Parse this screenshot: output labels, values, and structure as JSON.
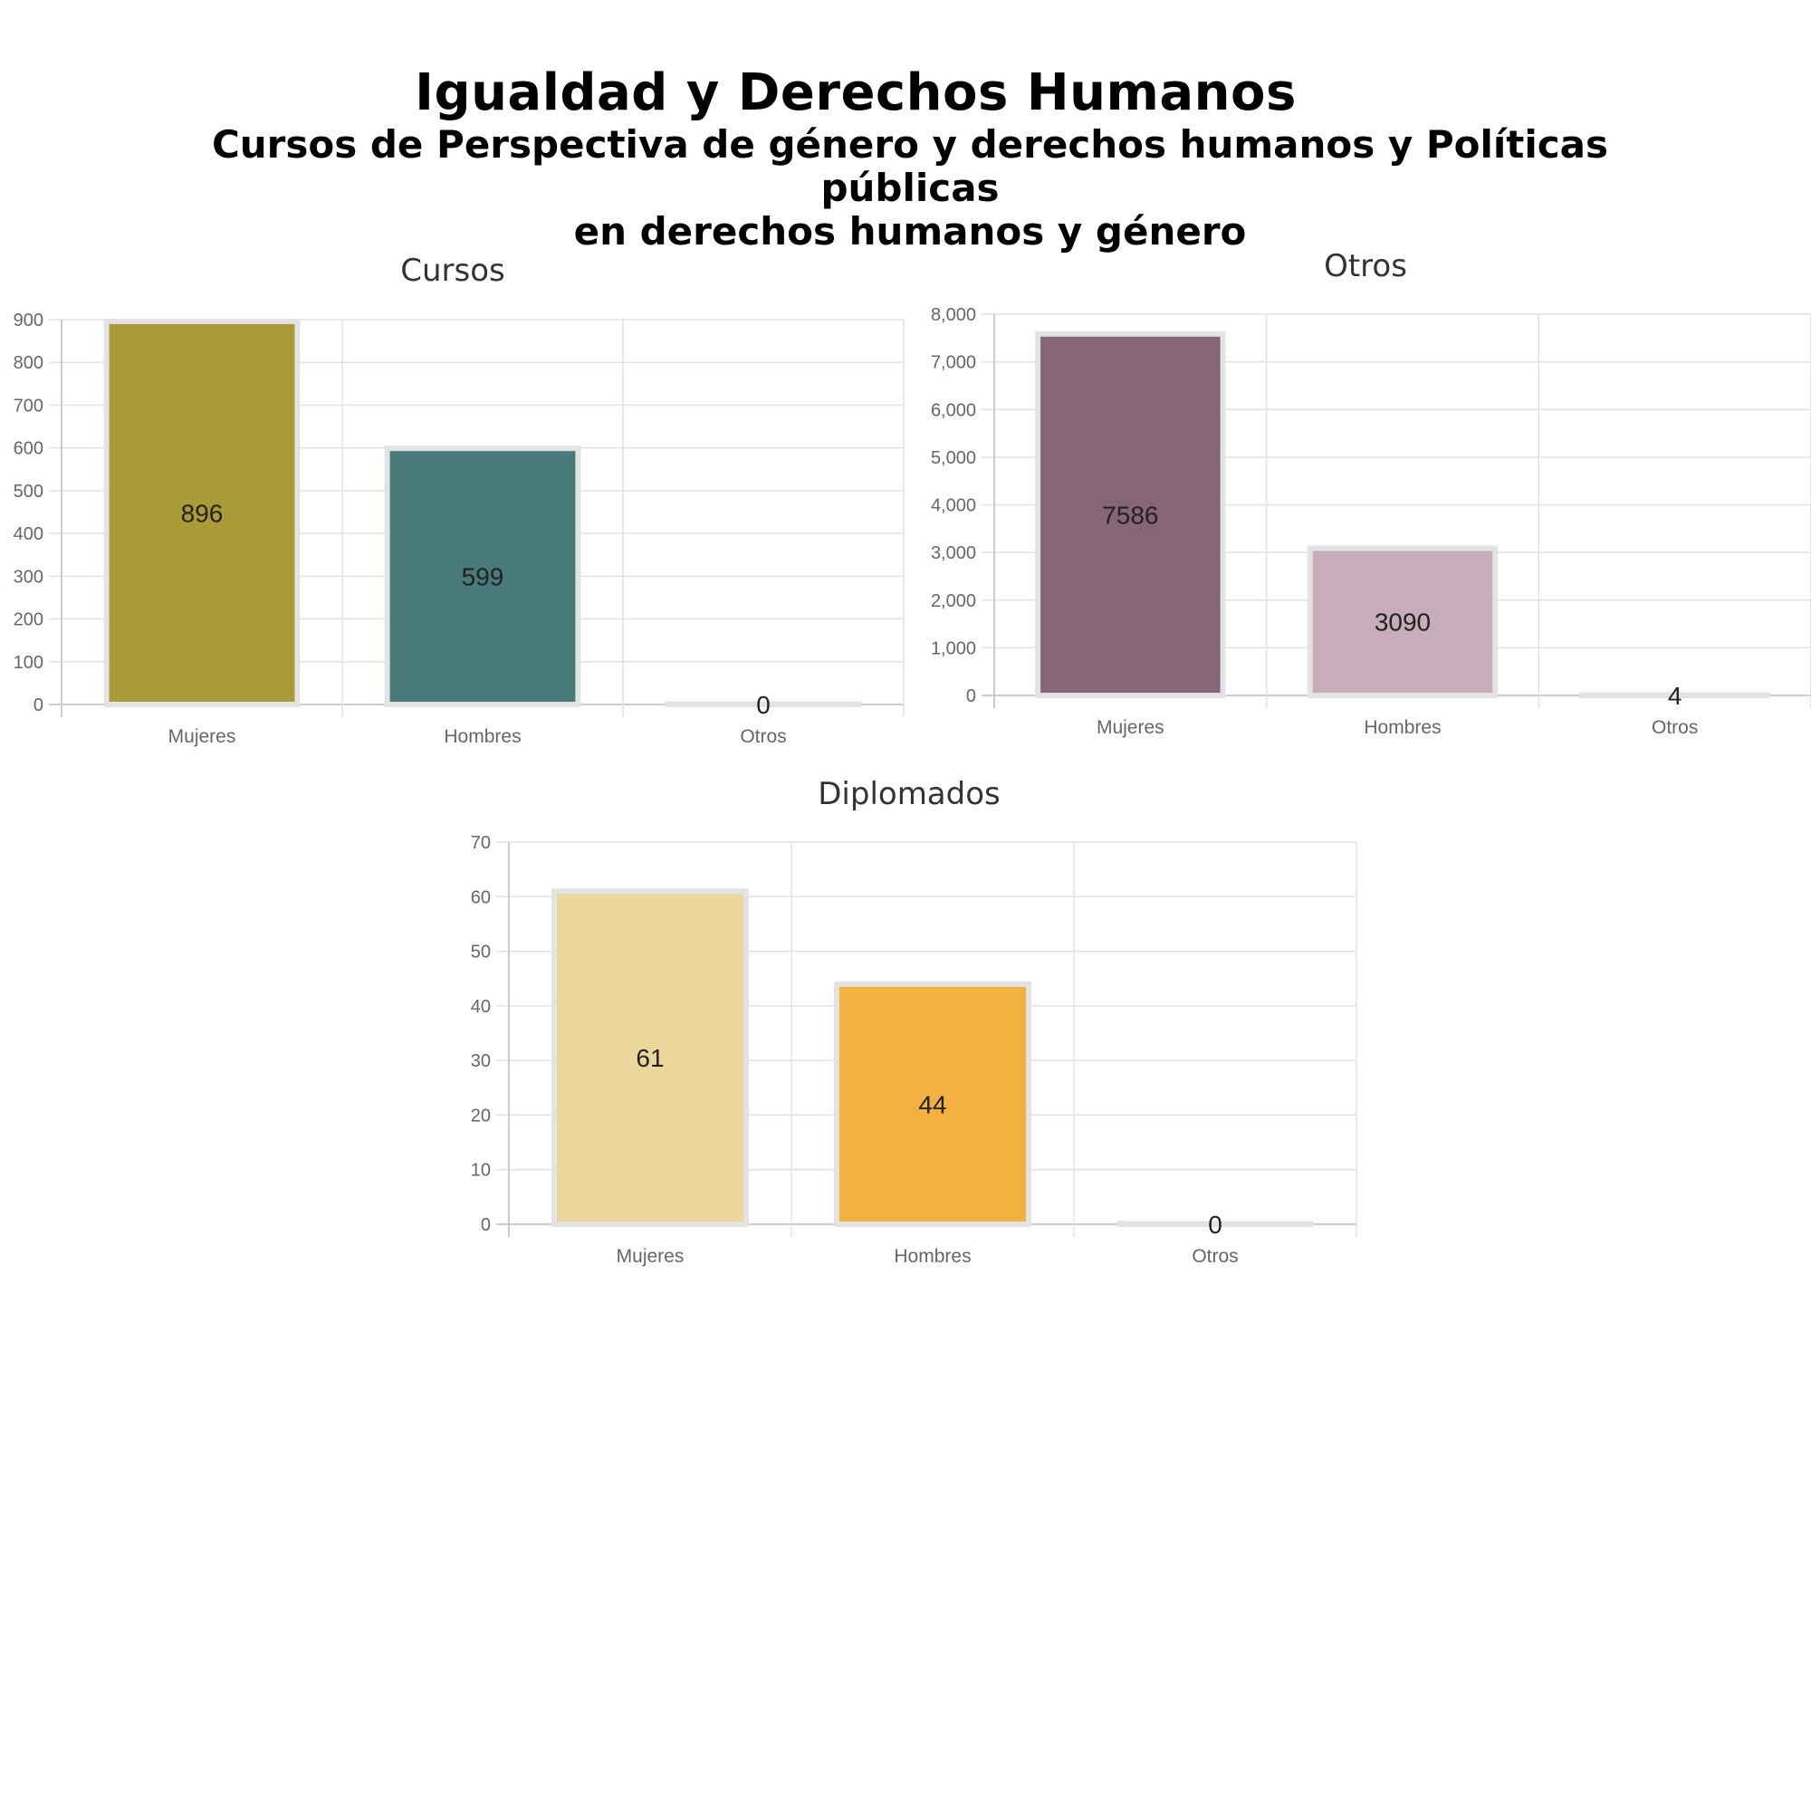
{
  "header": {
    "title": "Igualdad y Derechos Humanos",
    "subtitle_line1": "Cursos de Perspectiva de género y derechos humanos y Políticas públicas",
    "subtitle_line2": "en derechos humanos y género"
  },
  "chart_data": [
    {
      "type": "bar",
      "title": "Cursos",
      "categories": [
        "Mujeres",
        "Hombres",
        "Otros"
      ],
      "values": [
        896,
        599,
        0
      ],
      "data_labels": [
        "896",
        "599",
        "0"
      ],
      "colors": [
        "#a99c37",
        "#487a7b",
        "#a99c37"
      ],
      "ylim": [
        0,
        900
      ],
      "yticks": [
        0,
        100,
        200,
        300,
        400,
        500,
        600,
        700,
        800,
        900
      ],
      "ytick_labels": [
        "0",
        "100",
        "200",
        "300",
        "400",
        "500",
        "600",
        "700",
        "800",
        "900"
      ],
      "grid": true,
      "legend": "none"
    },
    {
      "type": "bar",
      "title": "Otros",
      "categories": [
        "Mujeres",
        "Hombres",
        "Otros"
      ],
      "values": [
        7586,
        3090,
        4
      ],
      "data_labels": [
        "7586",
        "3090",
        "4"
      ],
      "colors": [
        "#866577",
        "#c6adb9",
        "#c6adb9"
      ],
      "ylim": [
        0,
        8000
      ],
      "yticks": [
        0,
        1000,
        2000,
        3000,
        4000,
        5000,
        6000,
        7000,
        8000
      ],
      "ytick_labels": [
        "0",
        "1,000",
        "2,000",
        "3,000",
        "4,000",
        "5,000",
        "6,000",
        "7,000",
        "8,000"
      ],
      "grid": true,
      "legend": "none"
    },
    {
      "type": "bar",
      "title": "Diplomados",
      "categories": [
        "Mujeres",
        "Hombres",
        "Otros"
      ],
      "values": [
        61,
        44,
        0
      ],
      "data_labels": [
        "61",
        "44",
        "0"
      ],
      "colors": [
        "#ebd69c",
        "#f3b142",
        "#f3b142"
      ],
      "ylim": [
        0,
        70
      ],
      "yticks": [
        0,
        10,
        20,
        30,
        40,
        50,
        60,
        70
      ],
      "ytick_labels": [
        "0",
        "10",
        "20",
        "30",
        "40",
        "50",
        "60",
        "70"
      ],
      "grid": true,
      "legend": "none"
    }
  ]
}
